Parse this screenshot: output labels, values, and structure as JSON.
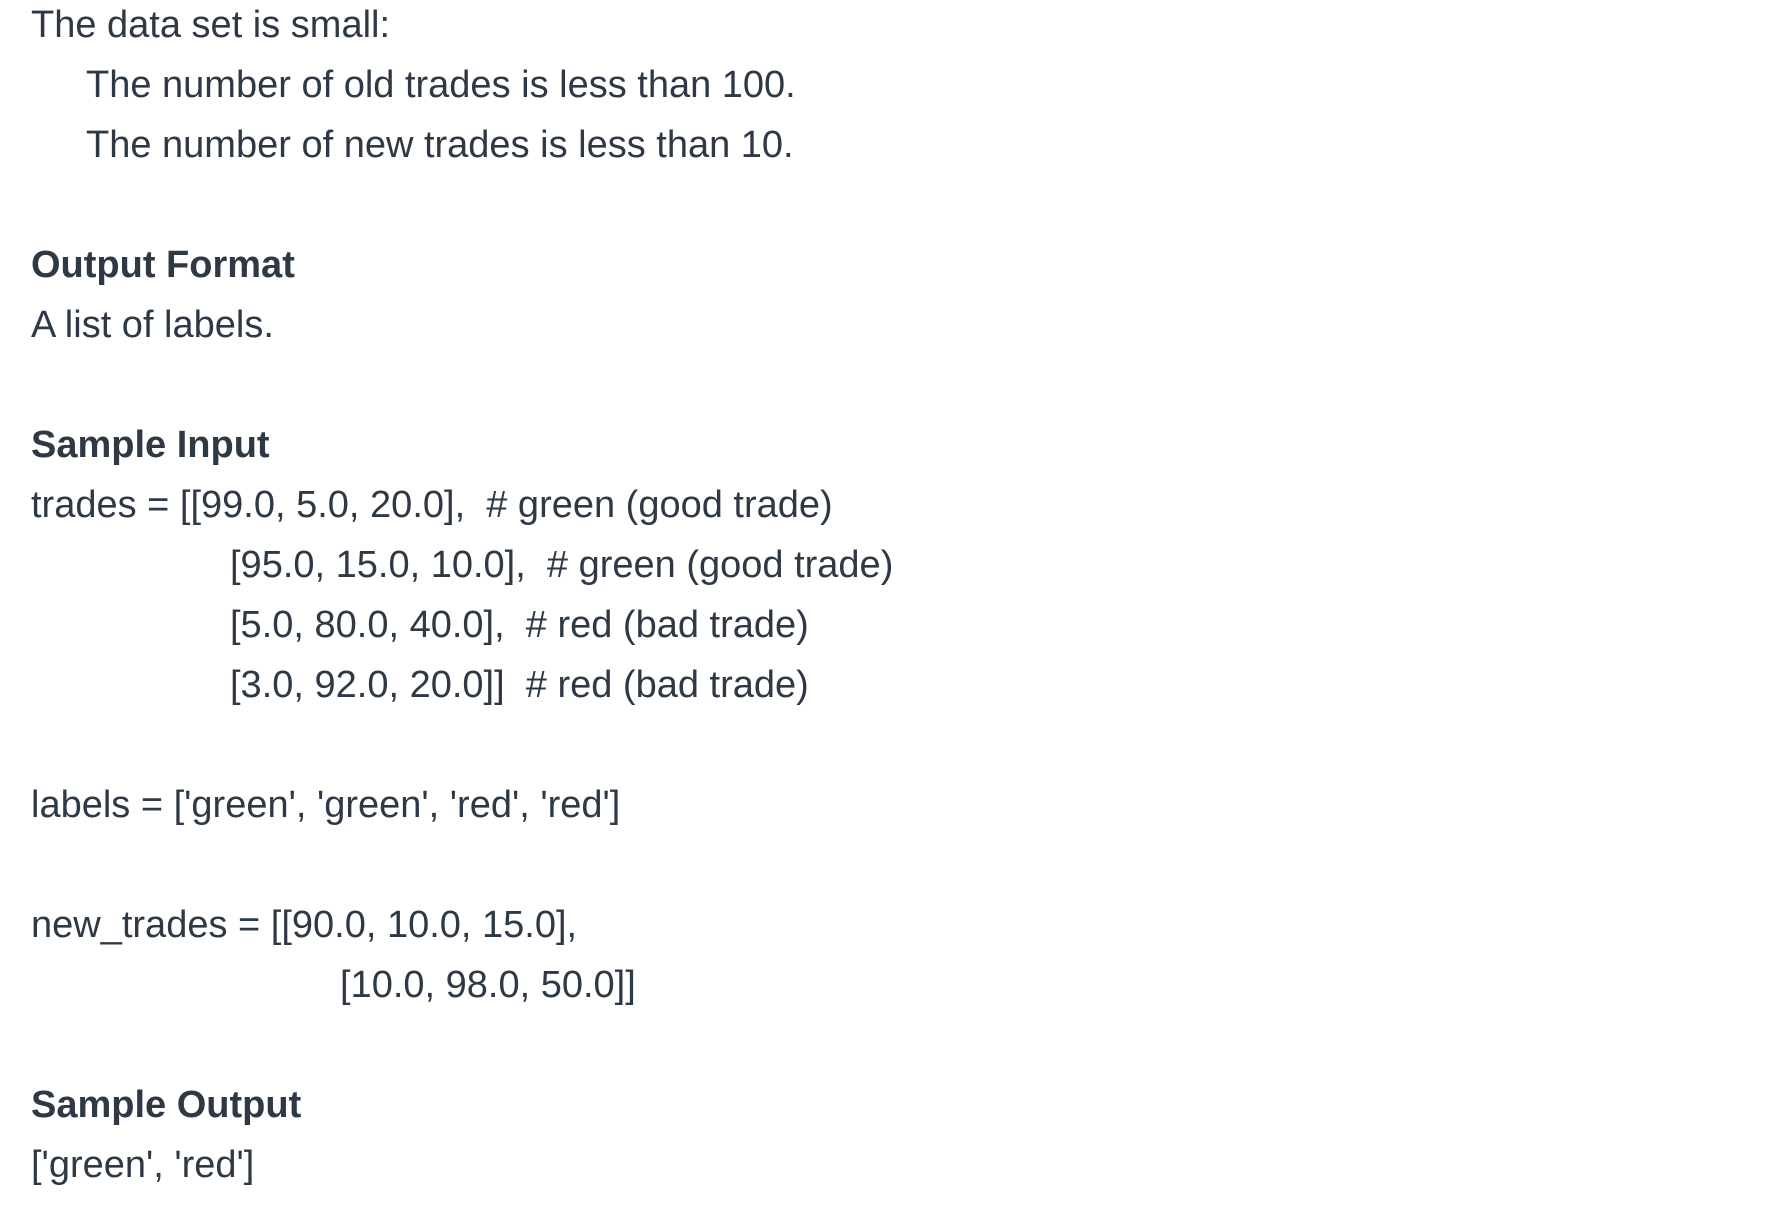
{
  "constraints": {
    "intro": "The data set is small:",
    "old_trades": "The number of old trades is less than 100.",
    "new_trades": "The number of new trades is less than 10."
  },
  "output_format": {
    "heading": "Output Format",
    "text": "A list of labels."
  },
  "sample_input": {
    "heading": "Sample Input",
    "trades_lines": [
      "trades = [[99.0, 5.0, 20.0],  # green (good trade)",
      "[95.0, 15.0, 10.0],  # green (good trade)",
      "[5.0, 80.0, 40.0],  # red (bad trade)",
      "[3.0, 92.0, 20.0]]  # red (bad trade)"
    ],
    "labels_line": "labels = ['green', 'green', 'red', 'red']",
    "new_trades_lines": [
      "new_trades = [[90.0, 10.0, 15.0],",
      "[10.0, 98.0, 50.0]]"
    ]
  },
  "sample_output": {
    "heading": "Sample Output",
    "text": "['green', 'red']"
  }
}
